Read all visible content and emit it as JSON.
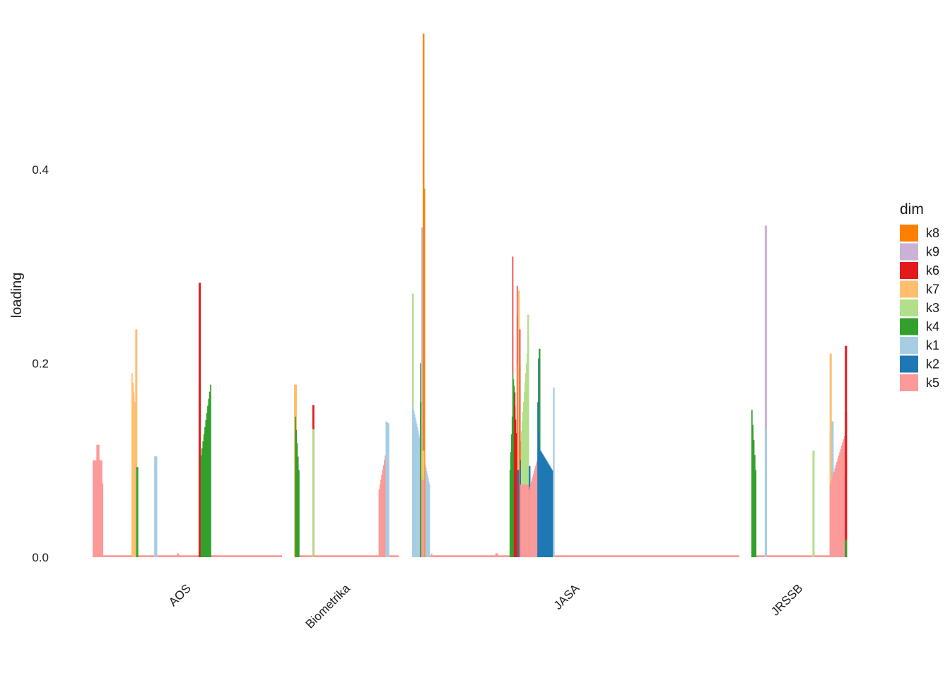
{
  "chart_data": {
    "type": "bar",
    "title": "",
    "xlabel": "",
    "ylabel": "loading",
    "ylim": [
      0,
      0.54
    ],
    "yticks": [
      0.0,
      0.2,
      0.4
    ],
    "ytick_labels": [
      "0.0",
      "0.2",
      "0.4"
    ],
    "grid": false,
    "legend": {
      "title": "dim",
      "position": "right",
      "entries": [
        {
          "key": "k8",
          "color": "#ff7f00"
        },
        {
          "key": "k9",
          "color": "#cab2d6"
        },
        {
          "key": "k6",
          "color": "#e31a1c"
        },
        {
          "key": "k7",
          "color": "#fdbf6f"
        },
        {
          "key": "k3",
          "color": "#b2df8a"
        },
        {
          "key": "k4",
          "color": "#33a02c"
        },
        {
          "key": "k1",
          "color": "#a6cee3"
        },
        {
          "key": "k2",
          "color": "#1f78b4"
        },
        {
          "key": "k5",
          "color": "#fb9a99"
        }
      ]
    },
    "panels": [
      {
        "label": "AOS",
        "slots": 200,
        "baseline": {
          "dim": "k5",
          "value": 0.002
        },
        "segments": [
          {
            "dim": "k5",
            "start": 0,
            "end": 10,
            "from": 0.1,
            "to": 0.1
          },
          {
            "dim": "k5",
            "start": 4,
            "end": 7,
            "from": 0.116,
            "to": 0.116
          },
          {
            "dim": "k5",
            "start": 7,
            "end": 11,
            "from": 0.08,
            "to": 0.076
          },
          {
            "dim": "k7",
            "start": 41,
            "end": 46,
            "from": 0.19,
            "to": 0.15
          },
          {
            "dim": "k7",
            "start": 45,
            "end": 47,
            "from": 0.235,
            "to": 0.235
          },
          {
            "dim": "k4",
            "start": 46,
            "end": 48,
            "from": 0.093,
            "to": 0.093
          },
          {
            "dim": "k1",
            "start": 65,
            "end": 68,
            "from": 0.104,
            "to": 0.104
          },
          {
            "dim": "k1",
            "start": 67,
            "end": 68,
            "from": 0.085,
            "to": 0.085
          },
          {
            "dim": "k5",
            "start": 89,
            "end": 91,
            "from": 0.004,
            "to": 0.004
          },
          {
            "dim": "k6",
            "start": 112,
            "end": 114,
            "from": 0.283,
            "to": 0.283
          },
          {
            "dim": "k6",
            "start": 112,
            "end": 114,
            "from": 0.178,
            "to": 0.178
          },
          {
            "dim": "k4",
            "start": 114,
            "end": 125,
            "from": 0.105,
            "to": 0.178
          }
        ]
      },
      {
        "label": "Biometrika",
        "slots": 120,
        "baseline": {
          "dim": "k5",
          "value": 0.002
        },
        "segments": [
          {
            "dim": "k7",
            "start": 0,
            "end": 3,
            "from": 0.178,
            "to": 0.178
          },
          {
            "dim": "k4",
            "start": 1,
            "end": 6,
            "from": 0.145,
            "to": 0.09
          },
          {
            "dim": "k6",
            "start": 21,
            "end": 23,
            "from": 0.157,
            "to": 0.157
          },
          {
            "dim": "k3",
            "start": 21,
            "end": 23,
            "from": 0.132,
            "to": 0.132
          },
          {
            "dim": "k5",
            "start": 97,
            "end": 106,
            "from": 0.07,
            "to": 0.11
          },
          {
            "dim": "k1",
            "start": 105,
            "end": 109,
            "from": 0.14,
            "to": 0.138
          }
        ]
      },
      {
        "label": "JASA",
        "slots": 460,
        "baseline": {
          "dim": "k5",
          "value": 0.002
        },
        "segments": [
          {
            "dim": "k3",
            "start": 0,
            "end": 2,
            "from": 0.272,
            "to": 0.272
          },
          {
            "dim": "k1",
            "start": 0,
            "end": 25,
            "from": 0.158,
            "to": 0.075
          },
          {
            "dim": "k4",
            "start": 11,
            "end": 14,
            "from": 0.2,
            "to": 0.12
          },
          {
            "dim": "k9",
            "start": 13,
            "end": 15,
            "from": 0.34,
            "to": 0.34
          },
          {
            "dim": "k9",
            "start": 15,
            "end": 16,
            "from": 0.425,
            "to": 0.425
          },
          {
            "dim": "k8",
            "start": 15,
            "end": 17,
            "from": 0.54,
            "to": 0.54
          },
          {
            "dim": "k8",
            "start": 17,
            "end": 18,
            "from": 0.38,
            "to": 0.285
          },
          {
            "dim": "k7",
            "start": 13,
            "end": 17,
            "from": 0.11,
            "to": 0.11
          },
          {
            "dim": "k5",
            "start": 13,
            "end": 17,
            "from": 0.08,
            "to": 0.08
          },
          {
            "dim": "k5",
            "start": 27,
            "end": 28,
            "from": 0.004,
            "to": 0.004
          },
          {
            "dim": "k5",
            "start": 117,
            "end": 121,
            "from": 0.004,
            "to": 0.004
          },
          {
            "dim": "k4",
            "start": 137,
            "end": 141,
            "from": 0.09,
            "to": 0.145
          },
          {
            "dim": "k6",
            "start": 141,
            "end": 142,
            "from": 0.31,
            "to": 0.31
          },
          {
            "dim": "k4",
            "start": 141,
            "end": 145,
            "from": 0.19,
            "to": 0.17
          },
          {
            "dim": "k6",
            "start": 143,
            "end": 149,
            "from": 0.17,
            "to": 0.1
          },
          {
            "dim": "k6",
            "start": 147,
            "end": 148,
            "from": 0.28,
            "to": 0.28
          },
          {
            "dim": "k6",
            "start": 147,
            "end": 148,
            "from": 0.25,
            "to": 0.25
          },
          {
            "dim": "k7",
            "start": 149,
            "end": 151,
            "from": 0.275,
            "to": 0.275
          },
          {
            "dim": "k7",
            "start": 148,
            "end": 152,
            "from": 0.2,
            "to": 0.2
          },
          {
            "dim": "k7",
            "start": 148,
            "end": 153,
            "from": 0.12,
            "to": 0.12
          },
          {
            "dim": "k6",
            "start": 151,
            "end": 152,
            "from": 0.235,
            "to": 0.235
          },
          {
            "dim": "k2",
            "start": 148,
            "end": 150,
            "from": 0.09,
            "to": 0.09
          },
          {
            "dim": "k2",
            "start": 152,
            "end": 153,
            "from": 0.1,
            "to": 0.1
          },
          {
            "dim": "k3",
            "start": 153,
            "end": 164,
            "from": 0.13,
            "to": 0.23
          },
          {
            "dim": "k3",
            "start": 162,
            "end": 164,
            "from": 0.25,
            "to": 0.25
          },
          {
            "dim": "k5",
            "start": 152,
            "end": 165,
            "from": 0.075,
            "to": 0.075
          },
          {
            "dim": "k2",
            "start": 164,
            "end": 166,
            "from": 0.094,
            "to": 0.094
          },
          {
            "dim": "k5",
            "start": 164,
            "end": 178,
            "from": 0.07,
            "to": 0.105
          },
          {
            "dim": "k4",
            "start": 178,
            "end": 180,
            "from": 0.215,
            "to": 0.215
          },
          {
            "dim": "k2",
            "start": 177,
            "end": 178,
            "from": 0.205,
            "to": 0.205
          },
          {
            "dim": "k2",
            "start": 176,
            "end": 180,
            "from": 0.16,
            "to": 0.113
          },
          {
            "dim": "k2",
            "start": 180,
            "end": 199,
            "from": 0.11,
            "to": 0.088
          },
          {
            "dim": "k1",
            "start": 198,
            "end": 200,
            "from": 0.175,
            "to": 0.175
          }
        ]
      },
      {
        "label": "JRSSB",
        "slots": 100,
        "baseline": {
          "dim": "k5",
          "value": 0.002
        },
        "segments": [
          {
            "dim": "k4",
            "start": 0,
            "end": 5,
            "from": 0.152,
            "to": 0.09
          },
          {
            "dim": "k9",
            "start": 14,
            "end": 16,
            "from": 0.342,
            "to": 0.342
          },
          {
            "dim": "k1",
            "start": 14,
            "end": 16,
            "from": 0.133,
            "to": 0.133
          },
          {
            "dim": "k3",
            "start": 64,
            "end": 66,
            "from": 0.11,
            "to": 0.11
          },
          {
            "dim": "k7",
            "start": 82,
            "end": 84,
            "from": 0.21,
            "to": 0.21
          },
          {
            "dim": "k7",
            "start": 82,
            "end": 84,
            "from": 0.13,
            "to": 0.13
          },
          {
            "dim": "k1",
            "start": 84,
            "end": 86,
            "from": 0.14,
            "to": 0.14
          },
          {
            "dim": "k5",
            "start": 82,
            "end": 98,
            "from": 0.075,
            "to": 0.125
          },
          {
            "dim": "k6",
            "start": 98,
            "end": 100,
            "from": 0.218,
            "to": 0.218
          },
          {
            "dim": "k6",
            "start": 98,
            "end": 100,
            "from": 0.15,
            "to": 0.15
          },
          {
            "dim": "k4",
            "start": 98,
            "end": 100,
            "from": 0.018,
            "to": 0.018
          }
        ]
      }
    ]
  }
}
